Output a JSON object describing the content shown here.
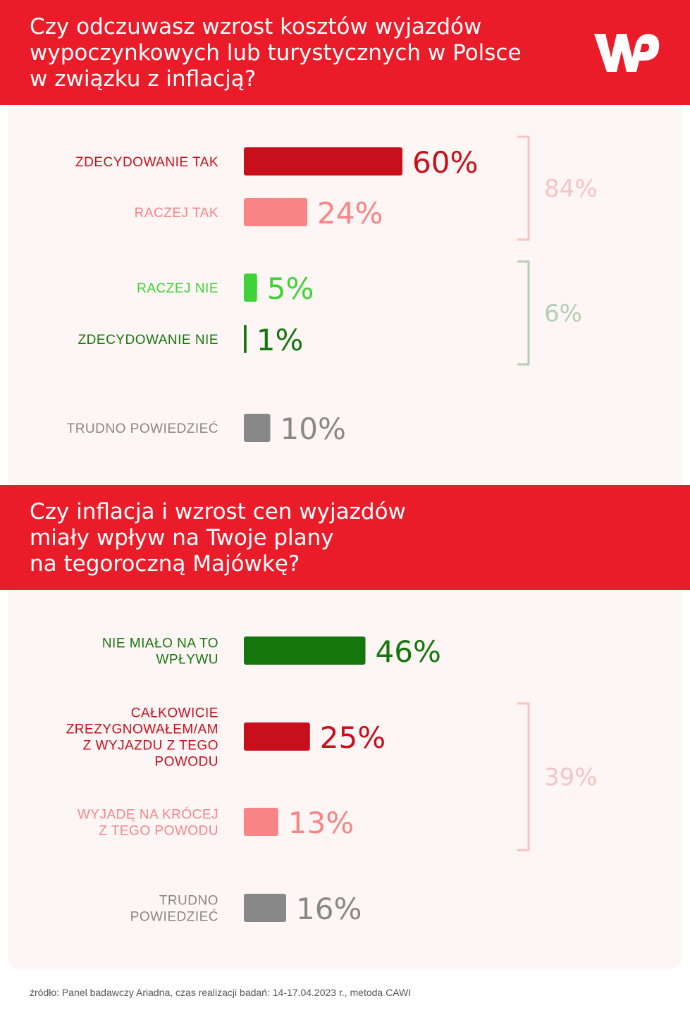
{
  "colors": {
    "brand_red": "#ea1c2a",
    "dark_red": "#c80f1c",
    "light_red": "#f98486",
    "pale_red": "#f7c4c4",
    "bright_green": "#3fd337",
    "dark_green": "#16760e",
    "pale_green": "#b3cfb3",
    "gray": "#888888"
  },
  "logo": {
    "text": "WP",
    "icon": "wp-logo-icon"
  },
  "chart_data": [
    {
      "type": "bar",
      "orientation": "horizontal",
      "title": "Czy odczuwasz wzrost kosztów wyjazdów\nwypoczynkowych lub turystycznych w Polsce\nw związku z inflacją?",
      "unit": "%",
      "xlim": [
        0,
        60
      ],
      "categories": [
        "ZDECYDOWANIE TAK",
        "RACZEJ TAK",
        "RACZEJ NIE",
        "ZDECYDOWANIE NIE",
        "TRUDNO POWIEDZIEĆ"
      ],
      "values": [
        60,
        24,
        5,
        1,
        10
      ],
      "value_labels": [
        "60%",
        "24%",
        "5%",
        "1%",
        "10%"
      ],
      "colors": [
        "#c80f1c",
        "#f98486",
        "#3fd337",
        "#16760e",
        "#888888"
      ],
      "groups": [
        {
          "label": "84%",
          "members": [
            0,
            1
          ],
          "color": "#f7c4c4"
        },
        {
          "label": "6%",
          "members": [
            2,
            3
          ],
          "color": "#b3cfb3"
        }
      ]
    },
    {
      "type": "bar",
      "orientation": "horizontal",
      "title": "Czy inflacja i wzrost cen wyjazdów\nmiały wpływ na Twoje plany\nna tegoroczną Majówkę?",
      "unit": "%",
      "xlim": [
        0,
        60
      ],
      "categories": [
        "NIE MIAŁO NA TO\nWPŁYWU",
        "CAŁKOWICIE\nZREZYGNOWAŁEM/AM\nZ WYJAZDU Z TEGO\nPOWODU",
        "WYJADĘ NA KRÓCEJ\nZ TEGO POWODU",
        "TRUDNO\nPOWIEDZIEĆ"
      ],
      "values": [
        46,
        25,
        13,
        16
      ],
      "value_labels": [
        "46%",
        "25%",
        "13%",
        "16%"
      ],
      "colors": [
        "#16760e",
        "#c80f1c",
        "#f98486",
        "#888888"
      ],
      "groups": [
        {
          "label": "39%",
          "members": [
            1,
            2
          ],
          "color": "#f7c4c4"
        }
      ]
    }
  ],
  "source": "źródło: Panel badawczy Ariadna, czas realizacji badań: 14-17.04.2023 r., metoda CAWI"
}
